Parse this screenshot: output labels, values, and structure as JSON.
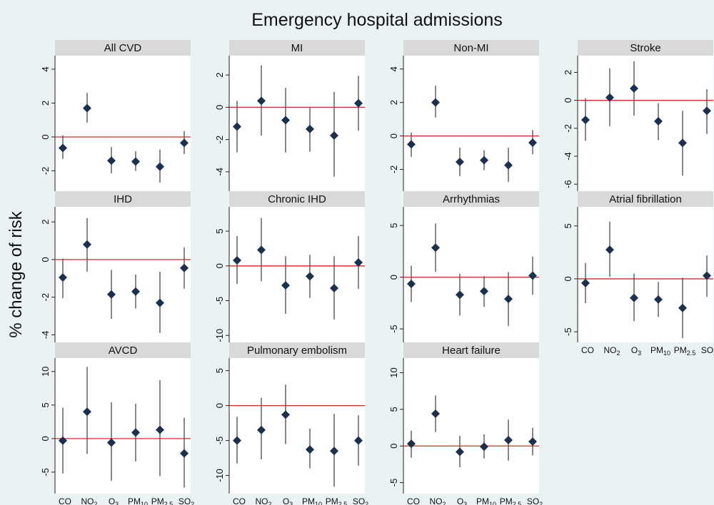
{
  "chart_data": {
    "type": "scatter",
    "title": "Emergency hospital admissions",
    "ylabel": "% change of risk",
    "x_labels": [
      {
        "base": "CO",
        "sub": ""
      },
      {
        "base": "NO",
        "sub": "2"
      },
      {
        "base": "O",
        "sub": "3"
      },
      {
        "base": "PM",
        "sub": "10"
      },
      {
        "base": "PM",
        "sub": "2.5"
      },
      {
        "base": "SO",
        "sub": "2"
      }
    ],
    "panels": [
      {
        "name": "All CVD",
        "ylim": [
          -3.2,
          4.8
        ],
        "yticks": [
          -2,
          0,
          2,
          4
        ],
        "estimates": [
          -0.65,
          1.7,
          -1.4,
          -1.45,
          -1.75,
          -0.35
        ],
        "lower": [
          -1.3,
          0.85,
          -2.15,
          -2.0,
          -2.7,
          -1.0
        ],
        "upper": [
          0.1,
          2.6,
          -0.6,
          -0.85,
          -0.75,
          0.35
        ]
      },
      {
        "name": "MI",
        "ylim": [
          -5.2,
          3.2
        ],
        "yticks": [
          -4,
          -2,
          0,
          2
        ],
        "estimates": [
          -1.2,
          0.4,
          -0.8,
          -1.35,
          -1.75,
          0.25
        ],
        "lower": [
          -2.8,
          -1.75,
          -2.8,
          -2.75,
          -4.3,
          -1.45
        ],
        "upper": [
          0.4,
          2.6,
          1.2,
          0.0,
          0.95,
          1.95
        ]
      },
      {
        "name": "Non-MI",
        "ylim": [
          -3.3,
          4.8
        ],
        "yticks": [
          -2,
          0,
          2,
          4
        ],
        "estimates": [
          -0.5,
          2.0,
          -1.55,
          -1.45,
          -1.75,
          -0.4
        ],
        "lower": [
          -1.25,
          1.1,
          -2.4,
          -2.05,
          -2.75,
          -1.1
        ],
        "upper": [
          0.2,
          3.0,
          -0.7,
          -0.85,
          -0.7,
          0.35
        ]
      },
      {
        "name": "Stroke",
        "ylim": [
          -6.5,
          3.2
        ],
        "yticks": [
          -6,
          -4,
          -2,
          0,
          2
        ],
        "estimates": [
          -1.4,
          0.2,
          0.85,
          -1.5,
          -3.05,
          -0.75
        ],
        "lower": [
          -2.9,
          -1.85,
          -1.1,
          -2.85,
          -5.4,
          -2.4
        ],
        "upper": [
          0.15,
          2.3,
          2.8,
          -0.2,
          -0.75,
          0.8
        ]
      },
      {
        "name": "IHD",
        "ylim": [
          -4.4,
          2.8
        ],
        "yticks": [
          -4,
          -2,
          0,
          2
        ],
        "estimates": [
          -0.95,
          0.8,
          -1.85,
          -1.7,
          -2.3,
          -0.45
        ],
        "lower": [
          -2.05,
          -0.65,
          -3.15,
          -2.6,
          -3.9,
          -1.55
        ],
        "upper": [
          0.05,
          2.2,
          -0.55,
          -0.8,
          -0.65,
          0.65
        ]
      },
      {
        "name": "Chronic IHD",
        "ylim": [
          -11,
          8.5
        ],
        "yticks": [
          -10,
          -5,
          0,
          5
        ],
        "estimates": [
          0.8,
          2.3,
          -2.8,
          -1.5,
          -3.2,
          0.5
        ],
        "lower": [
          -2.6,
          -2.2,
          -6.9,
          -4.6,
          -7.7,
          -3.3
        ],
        "upper": [
          4.3,
          6.9,
          1.4,
          1.6,
          1.4,
          4.3
        ]
      },
      {
        "name": "Arrhythmias",
        "ylim": [
          -6.3,
          6.8
        ],
        "yticks": [
          -5,
          0,
          5
        ],
        "estimates": [
          -0.65,
          2.85,
          -1.7,
          -1.35,
          -2.1,
          0.15
        ],
        "lower": [
          -2.4,
          0.5,
          -3.7,
          -2.85,
          -4.7,
          -1.7
        ],
        "upper": [
          1.1,
          5.2,
          0.35,
          0.1,
          0.5,
          2.0
        ]
      },
      {
        "name": "Atrial fibrillation",
        "ylim": [
          -6.0,
          6.8
        ],
        "yticks": [
          -5,
          0,
          5
        ],
        "estimates": [
          -0.4,
          2.75,
          -1.8,
          -1.95,
          -2.75,
          0.3
        ],
        "lower": [
          -2.3,
          0.2,
          -4.0,
          -3.6,
          -5.6,
          -1.7
        ],
        "upper": [
          1.5,
          5.4,
          0.5,
          -0.3,
          0.1,
          2.2
        ]
      },
      {
        "name": "AVCD",
        "ylim": [
          -8.2,
          12
        ],
        "yticks": [
          -5,
          0,
          5,
          10
        ],
        "estimates": [
          -0.3,
          4.0,
          -0.6,
          0.9,
          1.3,
          -2.2
        ],
        "lower": [
          -5.2,
          -2.3,
          -6.3,
          -3.4,
          -5.6,
          -7.3
        ],
        "upper": [
          4.6,
          10.7,
          5.4,
          5.2,
          8.7,
          3.1
        ]
      },
      {
        "name": "Pulmonary embolism",
        "ylim": [
          -12.6,
          6.8
        ],
        "yticks": [
          -10,
          -5,
          0,
          5
        ],
        "estimates": [
          -5.0,
          -3.5,
          -1.3,
          -6.3,
          -6.5,
          -5.0
        ],
        "lower": [
          -8.3,
          -7.7,
          -5.5,
          -9.0,
          -11.6,
          -8.6
        ],
        "upper": [
          -1.6,
          1.1,
          3.0,
          -3.3,
          -1.2,
          -1.4
        ]
      },
      {
        "name": "Heart failure",
        "ylim": [
          -6.5,
          12
        ],
        "yticks": [
          -5,
          0,
          5,
          10
        ],
        "estimates": [
          0.3,
          4.4,
          -0.8,
          -0.1,
          0.8,
          0.6
        ],
        "lower": [
          -1.6,
          1.9,
          -2.9,
          -1.7,
          -2.0,
          -1.3
        ],
        "upper": [
          2.1,
          6.9,
          1.4,
          1.6,
          3.6,
          2.5
        ]
      }
    ],
    "colors": {
      "marker": "#1b2f4e",
      "zero_line": "#d62a22",
      "ci": "#555555",
      "strip": "#d9d9d9",
      "panel": "#ffffff",
      "background": "#eaf2f3"
    }
  }
}
